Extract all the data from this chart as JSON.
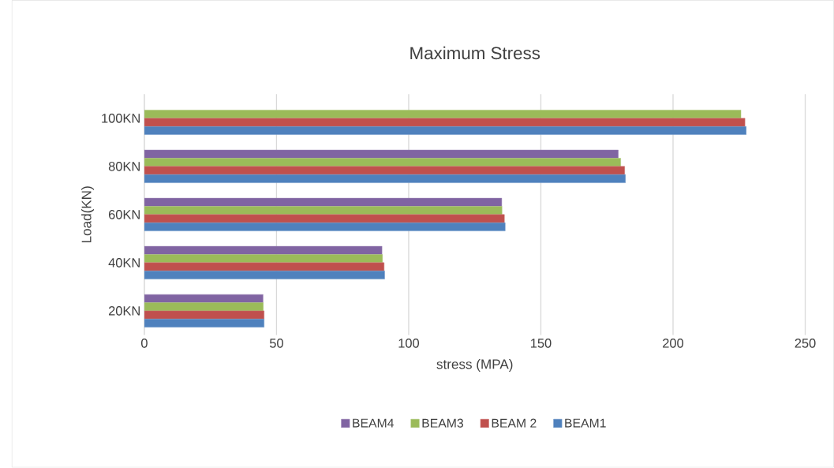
{
  "chart_data": {
    "type": "bar",
    "orientation": "horizontal",
    "title": "Maximum Stress",
    "xlabel": "stress (MPA)",
    "ylabel": "Load(KN)",
    "categories": [
      "100KN",
      "80KN",
      "60KN",
      "40KN",
      "20KN"
    ],
    "series": [
      {
        "name": "BEAM4",
        "color": "#8064a2",
        "values": [
          null,
          179.3,
          135.2,
          89.9,
          44.9
        ]
      },
      {
        "name": "BEAM3",
        "color": "#9bbb59",
        "values": [
          225.7,
          180.2,
          135.3,
          90.1,
          45.0
        ]
      },
      {
        "name": "BEAM 2",
        "color": "#c0504d",
        "values": [
          227.2,
          181.7,
          136.2,
          90.7,
          45.3
        ]
      },
      {
        "name": "BEAM1",
        "color": "#4f81bd",
        "values": [
          227.7,
          182.0,
          136.5,
          90.9,
          45.3
        ]
      }
    ],
    "xlim": [
      0,
      250
    ],
    "xticks": [
      0,
      50,
      100,
      150,
      200,
      250
    ],
    "grid": "x",
    "legend": "bottom"
  }
}
